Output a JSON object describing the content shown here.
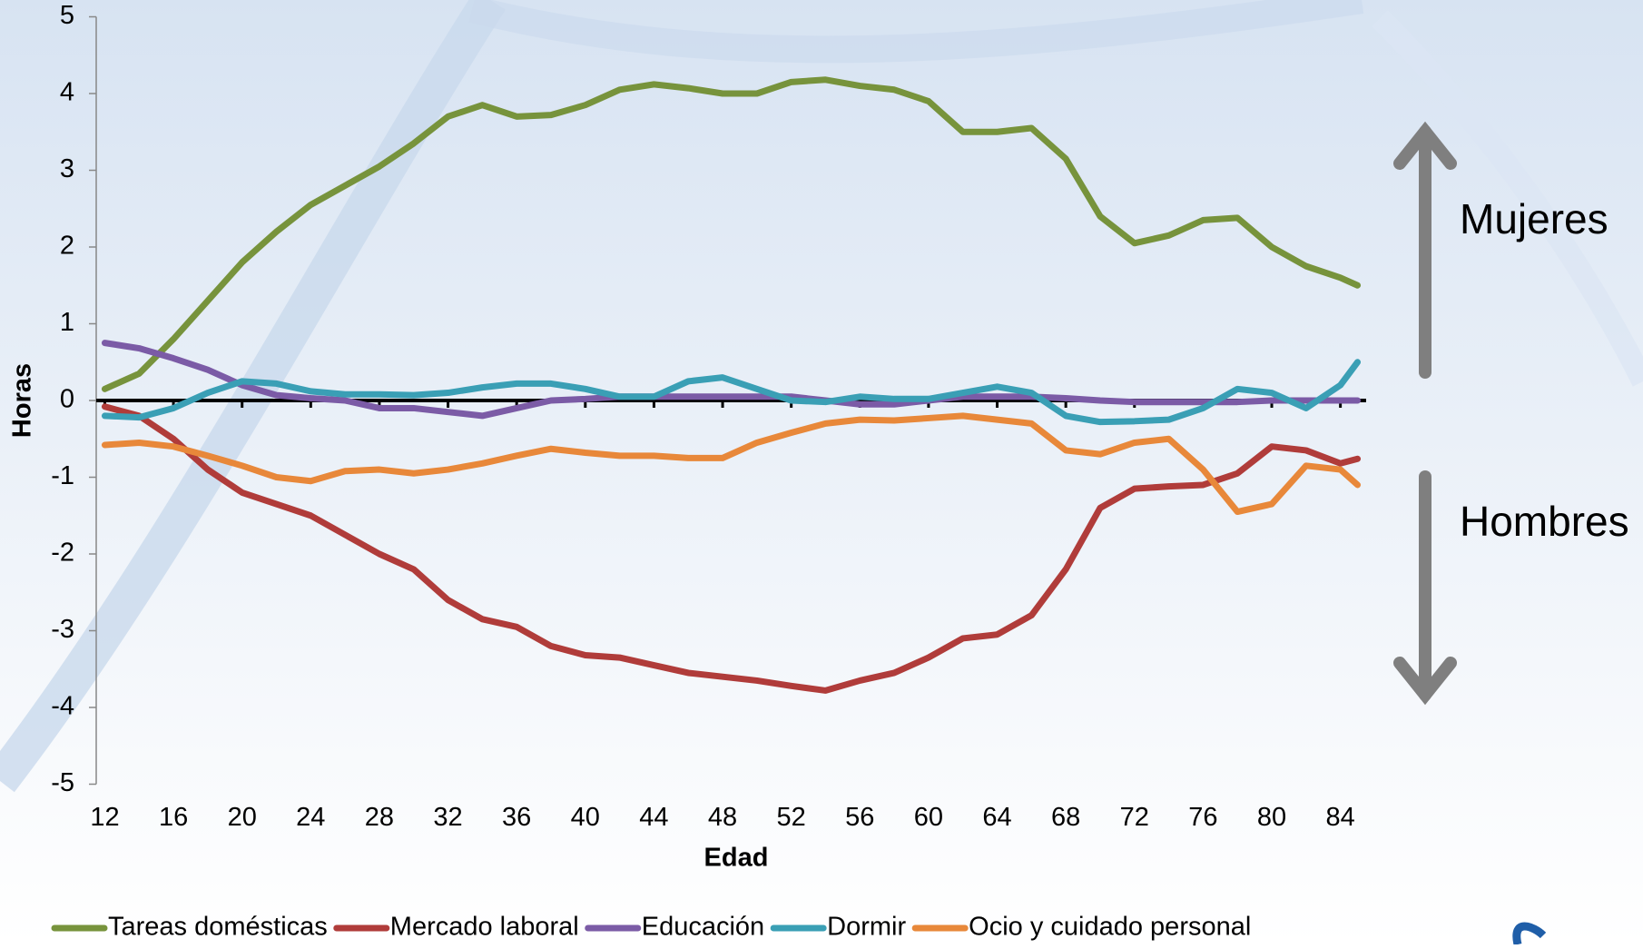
{
  "chart_data": {
    "type": "line",
    "x_label": "Edad",
    "y_label": "Horas",
    "annotations": [
      "Mujeres",
      "Hombres"
    ],
    "x": [
      12,
      14,
      16,
      18,
      20,
      22,
      24,
      26,
      28,
      30,
      32,
      34,
      36,
      38,
      40,
      42,
      44,
      46,
      48,
      50,
      52,
      54,
      56,
      58,
      60,
      62,
      64,
      66,
      68,
      70,
      72,
      74,
      76,
      78,
      80,
      82,
      84,
      85
    ],
    "xlim": [
      11.5,
      85.5
    ],
    "xticks": [
      12,
      16,
      20,
      24,
      28,
      32,
      36,
      40,
      44,
      48,
      52,
      56,
      60,
      64,
      68,
      72,
      76,
      80,
      84
    ],
    "ylim": [
      -5,
      5
    ],
    "yticks": [
      -5,
      -4,
      -3,
      -2,
      -1,
      0,
      1,
      2,
      3,
      4,
      5
    ],
    "legend": "bottom",
    "series": [
      {
        "name": "Tareas domésticas",
        "color": "#77933c",
        "values": [
          0.15,
          0.35,
          0.8,
          1.3,
          1.8,
          2.2,
          2.55,
          2.8,
          3.05,
          3.35,
          3.7,
          3.85,
          3.7,
          3.72,
          3.85,
          4.05,
          4.12,
          4.07,
          4.0,
          4.0,
          4.15,
          4.18,
          4.1,
          4.05,
          3.9,
          3.5,
          3.5,
          3.55,
          3.15,
          2.4,
          2.05,
          2.15,
          2.35,
          2.38,
          2.0,
          1.75,
          1.6,
          1.5
        ]
      },
      {
        "name": "Mercado laboral",
        "color": "#b03c3a",
        "values": [
          -0.08,
          -0.2,
          -0.5,
          -0.9,
          -1.2,
          -1.35,
          -1.5,
          -1.75,
          -2.0,
          -2.2,
          -2.6,
          -2.85,
          -2.95,
          -3.2,
          -3.32,
          -3.35,
          -3.45,
          -3.55,
          -3.6,
          -3.65,
          -3.72,
          -3.78,
          -3.65,
          -3.55,
          -3.35,
          -3.1,
          -3.05,
          -2.8,
          -2.2,
          -1.4,
          -1.15,
          -1.12,
          -1.1,
          -0.95,
          -0.6,
          -0.65,
          -0.82,
          -0.76
        ]
      },
      {
        "name": "Educación",
        "color": "#7b5ba6",
        "values": [
          0.75,
          0.68,
          0.55,
          0.4,
          0.2,
          0.07,
          0.03,
          0.0,
          -0.1,
          -0.1,
          -0.15,
          -0.2,
          -0.1,
          0.0,
          0.02,
          0.05,
          0.05,
          0.05,
          0.05,
          0.05,
          0.05,
          0.0,
          -0.05,
          -0.05,
          0.0,
          0.05,
          0.05,
          0.05,
          0.03,
          0.0,
          -0.02,
          -0.02,
          -0.02,
          -0.02,
          0.0,
          0.0,
          0.0,
          0.0
        ]
      },
      {
        "name": "Dormir",
        "color": "#3a9fb5",
        "values": [
          -0.2,
          -0.22,
          -0.1,
          0.1,
          0.25,
          0.22,
          0.12,
          0.08,
          0.08,
          0.07,
          0.1,
          0.17,
          0.22,
          0.22,
          0.15,
          0.05,
          0.05,
          0.25,
          0.3,
          0.15,
          0.0,
          -0.02,
          0.05,
          0.02,
          0.02,
          0.1,
          0.18,
          0.1,
          -0.2,
          -0.28,
          -0.27,
          -0.25,
          -0.1,
          0.15,
          0.1,
          -0.1,
          0.2,
          0.5
        ]
      },
      {
        "name": "Ocio y cuidado personal",
        "color": "#e8883a",
        "values": [
          -0.58,
          -0.55,
          -0.6,
          -0.72,
          -0.85,
          -1.0,
          -1.05,
          -0.92,
          -0.9,
          -0.95,
          -0.9,
          -0.82,
          -0.72,
          -0.63,
          -0.68,
          -0.72,
          -0.72,
          -0.75,
          -0.75,
          -0.55,
          -0.42,
          -0.3,
          -0.25,
          -0.26,
          -0.23,
          -0.2,
          -0.25,
          -0.3,
          -0.65,
          -0.7,
          -0.55,
          -0.5,
          -0.9,
          -1.45,
          -1.35,
          -0.85,
          -0.9,
          -1.1
        ]
      }
    ]
  }
}
